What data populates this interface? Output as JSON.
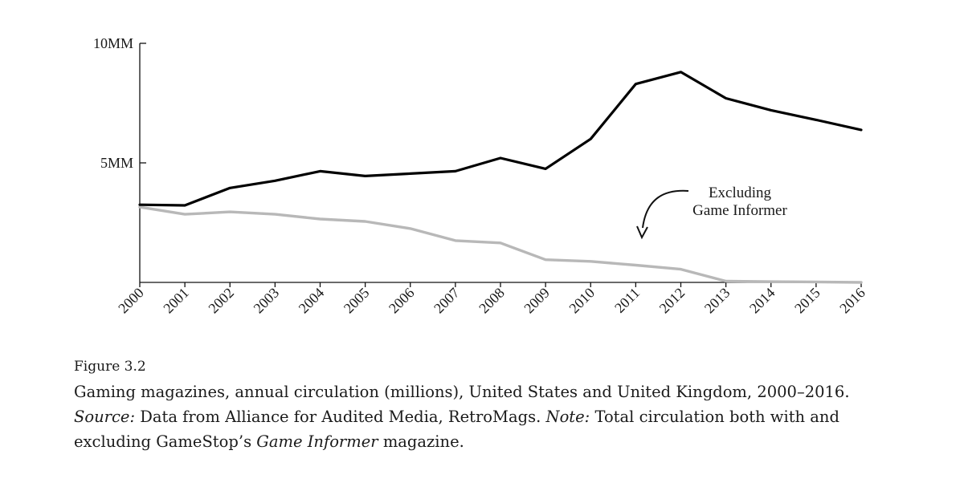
{
  "chart_data": {
    "type": "line",
    "title": "",
    "xlabel": "",
    "ylabel": "",
    "x": [
      "2000",
      "2001",
      "2002",
      "2003",
      "2004",
      "2005",
      "2006",
      "2007",
      "2008",
      "2009",
      "2010",
      "2011",
      "2012",
      "2013",
      "2014",
      "2015",
      "2016"
    ],
    "ylim": [
      0,
      10
    ],
    "yticks": [
      {
        "value": 5,
        "label": "5MM"
      },
      {
        "value": 10,
        "label": "10MM"
      }
    ],
    "grid": false,
    "series": [
      {
        "name": "",
        "color": "#000000",
        "values": [
          3.25,
          3.22,
          3.95,
          4.25,
          4.65,
          4.45,
          4.55,
          4.65,
          5.2,
          4.75,
          6.0,
          8.3,
          8.8,
          7.7,
          7.2,
          6.8,
          6.38
        ]
      },
      {
        "name": "Excluding Game Informer",
        "color": "#b8b8b8",
        "values": [
          3.15,
          2.85,
          2.95,
          2.85,
          2.65,
          2.55,
          2.25,
          1.75,
          1.65,
          0.95,
          0.88,
          0.72,
          0.55,
          0.05,
          0.03,
          0.02,
          0.0
        ]
      }
    ],
    "annotations": [
      {
        "lines": [
          "Excluding",
          "Game Informer"
        ],
        "target_series": 1
      }
    ]
  },
  "caption": {
    "figure_label": "Figure 3.2",
    "main": "Gaming magazines, annual circulation (millions), United States and United Kingdom, 2000–2016.",
    "source_label": "Source:",
    "source_text": "Data from Alliance for Audited Media, RetroMags.",
    "note_label": "Note:",
    "note_text_1": "Total circulation both with and excluding GameStop’s",
    "note_italic": "Game Informer",
    "note_text_2": "magazine."
  }
}
